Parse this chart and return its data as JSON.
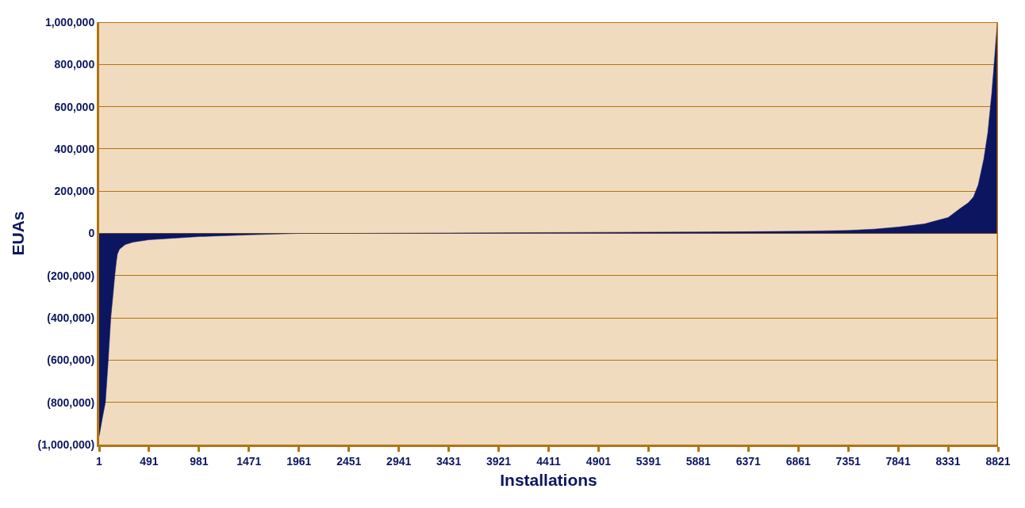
{
  "chart_data": {
    "type": "area",
    "xlabel": "Installations",
    "ylabel": "EUAs",
    "x": [
      1,
      30,
      62,
      90,
      115,
      135,
      154,
      170,
      180,
      200,
      257,
      335,
      491,
      981,
      1471,
      1961,
      2451,
      2941,
      3431,
      3921,
      4411,
      4901,
      5391,
      5881,
      6371,
      6861,
      7351,
      7600,
      7841,
      8100,
      8213,
      8331,
      8447,
      8530,
      8580,
      8627,
      8682,
      8721,
      8760,
      8791,
      8814,
      8821
    ],
    "series": [
      {
        "color": "#0c1660",
        "values": [
          -960000,
          -880000,
          -800000,
          -600000,
          -400000,
          -300000,
          -200000,
          -130000,
          -98000,
          -75000,
          -53000,
          -41000,
          -30000,
          -15000,
          -7000,
          0,
          0,
          1000,
          2000,
          3000,
          4000,
          5000,
          6000,
          7000,
          8000,
          10000,
          14000,
          20000,
          30000,
          45000,
          60000,
          75000,
          117000,
          145000,
          173000,
          230000,
          353000,
          477000,
          665000,
          853000,
          1000000,
          1000000
        ]
      }
    ],
    "xlim": [
      1,
      8821
    ],
    "xticks": [
      1,
      491,
      981,
      1471,
      1961,
      2451,
      2941,
      3431,
      3921,
      4411,
      4901,
      5391,
      5881,
      6371,
      6861,
      7351,
      7841,
      8331,
      8821
    ],
    "ylim": [
      -1000000,
      1000000
    ],
    "yticks": [
      {
        "value": -1000000,
        "label": "(1,000,000)"
      },
      {
        "value": -800000,
        "label": "(800,000)"
      },
      {
        "value": -600000,
        "label": "(600,000)"
      },
      {
        "value": -400000,
        "label": "(400,000)"
      },
      {
        "value": -200000,
        "label": "(200,000)"
      },
      0,
      {
        "value": 200000,
        "label": "200,000"
      },
      {
        "value": 400000,
        "label": "400,000"
      },
      {
        "value": 600000,
        "label": "600,000"
      },
      {
        "value": 800000,
        "label": "800,000"
      },
      {
        "value": 1000000,
        "label": "1,000,000"
      }
    ],
    "grid": "y"
  }
}
